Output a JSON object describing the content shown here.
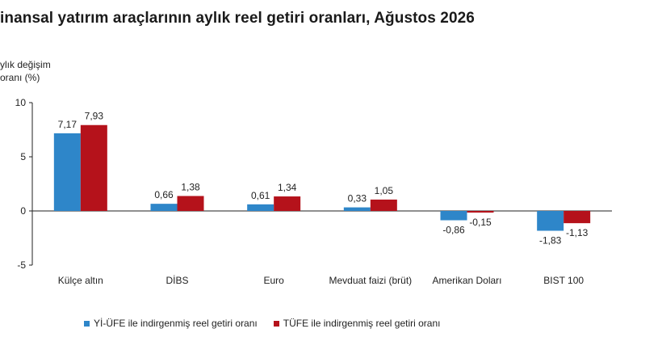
{
  "chart_data": {
    "type": "bar",
    "title": "inansal yatırım araçlarının aylık reel getiri oranları, Ağustos 2026",
    "ylabel_lines": [
      "ylık değişim",
      "oranı (%)"
    ],
    "xlabel": "",
    "ylim": [
      -5,
      10
    ],
    "yticks": [
      -5,
      0,
      5,
      10
    ],
    "ytick_labels": [
      "-5",
      "0",
      "5",
      "10"
    ],
    "categories": [
      "Külçe altın",
      "DİBS",
      "Euro",
      "Mevduat faizi (brüt)",
      "Amerikan Doları",
      "BIST 100"
    ],
    "series": [
      {
        "name": "Yİ-ÜFE ile indirgenmiş reel getiri oranı",
        "color": "#2e86c9",
        "values": [
          7.17,
          0.66,
          0.61,
          0.33,
          -0.86,
          -1.83
        ],
        "labels": [
          "7,17",
          "0,66",
          "0,61",
          "0,33",
          "-0,86",
          "-1,83"
        ]
      },
      {
        "name": "TÜFE ile indirgenmiş reel getiri oranı",
        "color": "#b5121b",
        "values": [
          7.93,
          1.38,
          1.34,
          1.05,
          -0.15,
          -1.13
        ],
        "labels": [
          "7,93",
          "1,38",
          "1,34",
          "1,05",
          "-0,15",
          "-1,13"
        ]
      }
    ],
    "grid": false,
    "legend_position": "bottom"
  }
}
